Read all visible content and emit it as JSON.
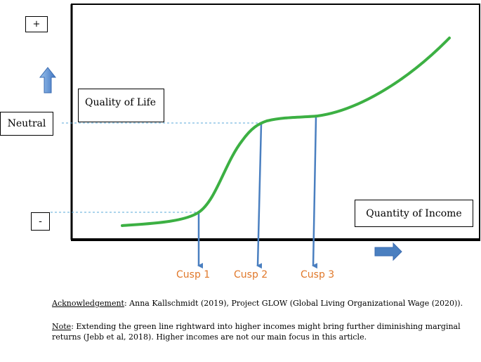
{
  "labels": {
    "plus": "+",
    "minus": "-",
    "neutral": "Neutral",
    "quality_of_life": "Quality of Life",
    "quantity_of_income": "Quantity of Income",
    "cusp1": "Cusp 1",
    "cusp2": "Cusp 2",
    "cusp3": "Cusp 3"
  },
  "footnotes": {
    "ack_label": "Acknowledgement",
    "ack_text": ":  Anna Kallschmidt (2019), Project GLOW (Global Living Organizational Wage (2020)).",
    "note_label": "Note",
    "note_text": ":  Extending the green line rightward into higher incomes might bring further diminishing marginal returns (Jebb et al, 2018). Higher incomes are not our main focus in this article."
  },
  "colors": {
    "curve": "#3cb043",
    "cusp_text": "#e0782a",
    "dashed": "#5aa9d8",
    "arrow": "#4a7fc0"
  },
  "icons": {
    "up": "up-arrow-icon",
    "right": "right-arrow-icon"
  }
}
